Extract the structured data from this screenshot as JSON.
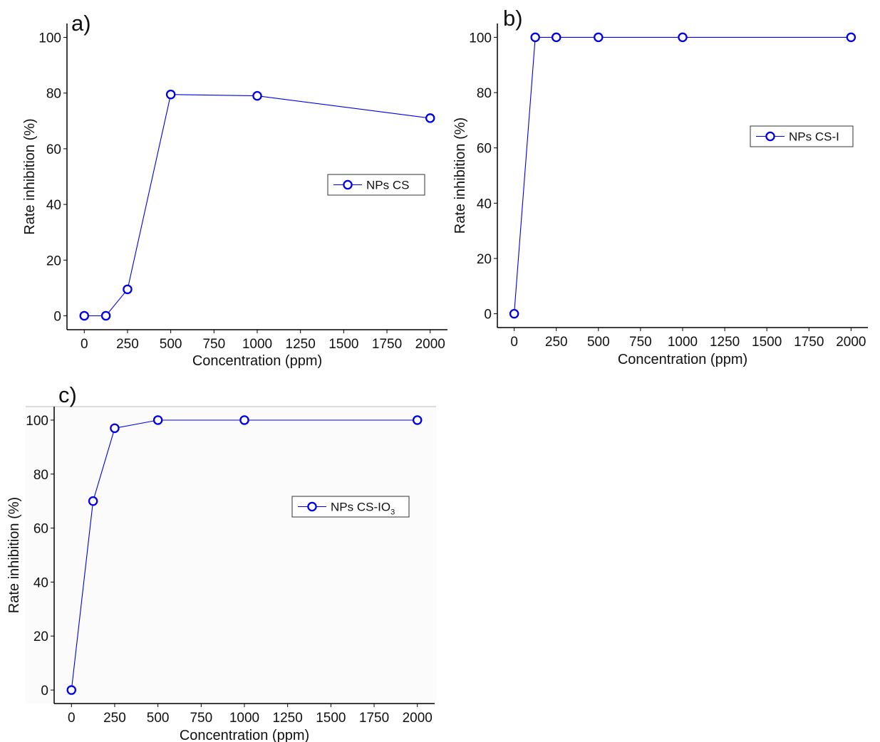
{
  "chart_data": [
    {
      "panel_label": "a)",
      "type": "line",
      "xlabel": "Concentration (ppm)",
      "ylabel": "Rate inhibition (%)",
      "xlim": [
        -100,
        2100
      ],
      "ylim": [
        -5,
        105
      ],
      "xticks": [
        0,
        250,
        500,
        750,
        1000,
        1250,
        1500,
        1750,
        2000
      ],
      "yticks": [
        0,
        20,
        40,
        60,
        80,
        100
      ],
      "grid": false,
      "legend_position": "right",
      "series": [
        {
          "name": "NPs CS",
          "name_sub": "",
          "color": "#0000e6",
          "x": [
            0,
            125,
            250,
            500,
            1000,
            2000
          ],
          "y": [
            0,
            0,
            9.5,
            79.5,
            79,
            71
          ]
        }
      ]
    },
    {
      "panel_label": "b)",
      "type": "line",
      "xlabel": "Concentration (ppm)",
      "ylabel": "Rate inhibition (%)",
      "xlim": [
        -100,
        2100
      ],
      "ylim": [
        -5,
        105
      ],
      "xticks": [
        0,
        250,
        500,
        750,
        1000,
        1250,
        1500,
        1750,
        2000
      ],
      "yticks": [
        0,
        20,
        40,
        60,
        80,
        100
      ],
      "grid": false,
      "legend_position": "right",
      "series": [
        {
          "name": "NPs CS-I",
          "name_sub": "",
          "color": "#0000e6",
          "x": [
            0,
            125,
            250,
            500,
            1000,
            2000
          ],
          "y": [
            0,
            100,
            100,
            100,
            100,
            100
          ]
        }
      ]
    },
    {
      "panel_label": "c)",
      "type": "line",
      "xlabel": "Concentration (ppm)",
      "ylabel": "Rate inhibition (%)",
      "xlim": [
        -100,
        2100
      ],
      "ylim": [
        -5,
        105
      ],
      "xticks": [
        0,
        250,
        500,
        750,
        1000,
        1250,
        1500,
        1750,
        2000
      ],
      "yticks": [
        0,
        20,
        40,
        60,
        80,
        100
      ],
      "grid": false,
      "legend_position": "right",
      "series": [
        {
          "name": "NPs CS-IO",
          "name_sub": "3",
          "color": "#0000e6",
          "x": [
            0,
            125,
            250,
            500,
            1000,
            2000
          ],
          "y": [
            0,
            70,
            97,
            100,
            100,
            100
          ]
        }
      ]
    }
  ]
}
